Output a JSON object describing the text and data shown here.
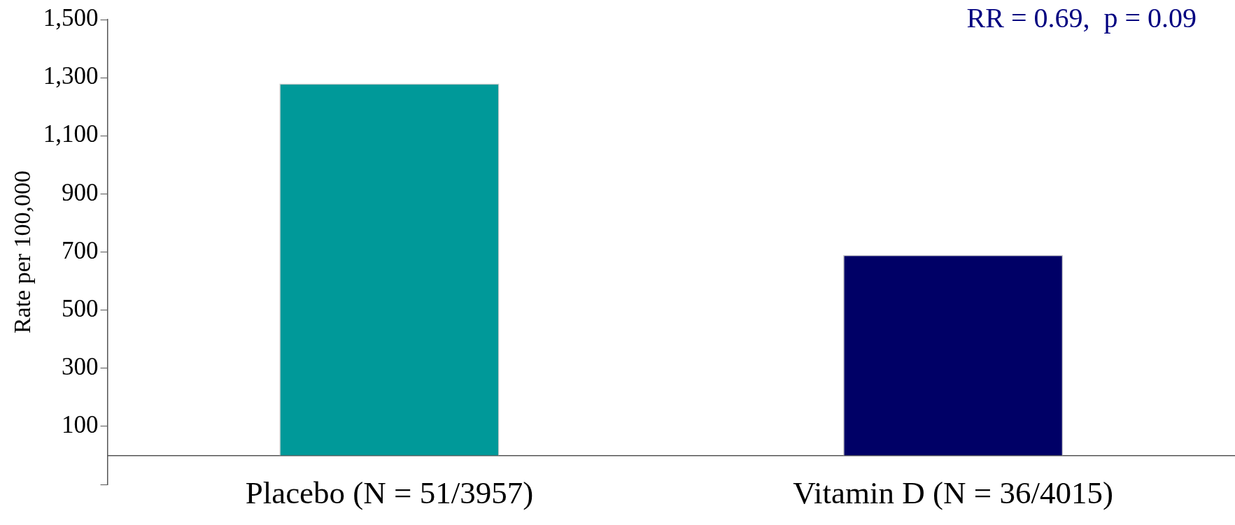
{
  "chart_data": {
    "type": "bar",
    "ylabel": "Rate per 100,000",
    "categories": [
      "Placebo (N = 51/3957)",
      "Vitamin D (N = 36/4015)"
    ],
    "values": [
      1280,
      690
    ],
    "colors": [
      "#009999",
      "#000066"
    ],
    "ylim": [
      -100,
      1500
    ],
    "yticks": [
      {
        "value": -100,
        "label": null
      },
      100,
      300,
      500,
      700,
      900,
      {
        "value": 1100,
        "label": "1,100"
      },
      {
        "value": 1300,
        "label": "1,300"
      },
      {
        "value": 1500,
        "label": "1,500"
      }
    ],
    "grid": false,
    "legend": false,
    "annotations": [
      "RR = 0.69,  p = 0.09"
    ]
  }
}
